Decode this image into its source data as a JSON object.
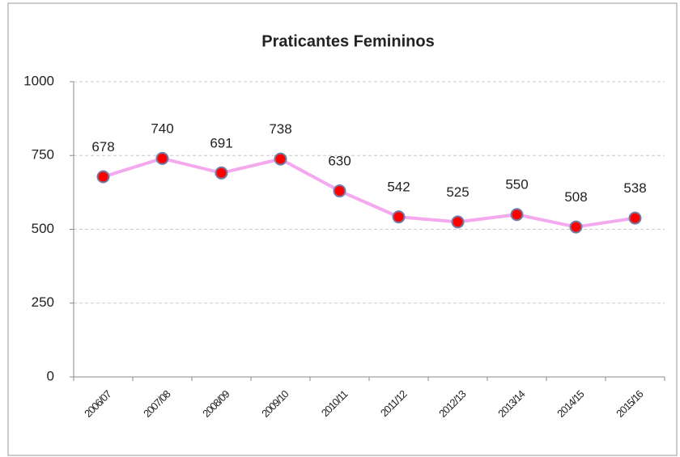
{
  "chart_data": {
    "type": "line",
    "title": "Praticantes Femininos",
    "categories": [
      "2006/07",
      "2007/08",
      "2008/09",
      "2009/10",
      "2010/11",
      "2011/12",
      "2012/13",
      "2013/14",
      "2014/15",
      "2015/16"
    ],
    "series": [
      {
        "name": "Praticantes Femininos",
        "color": "#f4a9ef",
        "marker_color": "#ff0000",
        "values": [
          678,
          740,
          691,
          738,
          630,
          542,
          525,
          550,
          508,
          538
        ]
      }
    ],
    "ylim": [
      0,
      1000
    ],
    "yticks": [
      0,
      250,
      500,
      750,
      1000
    ],
    "grid": true
  }
}
